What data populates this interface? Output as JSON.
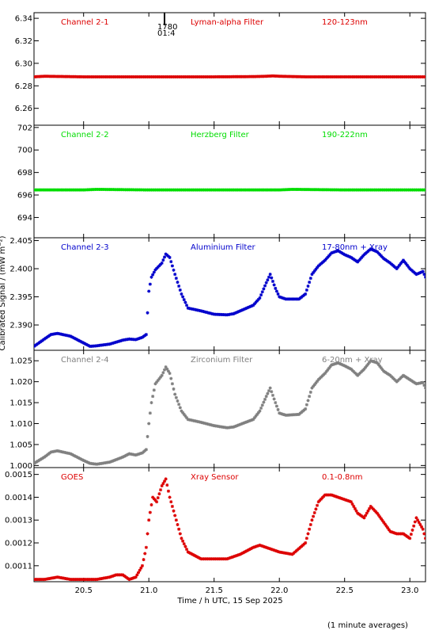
{
  "ylabel_common": "Calibrated Signal / (mW m⁻²)",
  "xlabel": "Time / h UTC, 15 Sep 2025",
  "footnote": "(1 minute averages)",
  "xaxis": {
    "range": [
      20.12,
      23.12
    ],
    "ticks": [
      20.5,
      21.0,
      21.5,
      22.0,
      22.5,
      23.0
    ],
    "tick_labels": [
      "20.5",
      "21.0",
      "21.5",
      "22.0",
      "22.5",
      "23.0"
    ]
  },
  "marker": {
    "labels": [
      "1780",
      "01:4"
    ]
  },
  "chart_data": [
    {
      "type": "scatter",
      "labels": [
        "Channel 2-1",
        "Lyman-alpha Filter",
        "120-123nm"
      ],
      "color": "#dd0000",
      "ylim": [
        6.245,
        6.345
      ],
      "yticks": [
        6.26,
        6.28,
        6.3,
        6.32,
        6.34
      ],
      "ytick_labels": [
        "6.26",
        "6.28",
        "6.30",
        "6.32",
        "6.34"
      ],
      "series": [
        {
          "x": [
            20.12,
            20.2,
            20.5,
            21.0,
            21.5,
            21.8,
            21.9,
            21.95,
            22.0,
            22.2,
            22.5,
            23.0,
            23.12
          ],
          "y": [
            6.288,
            6.2885,
            6.288,
            6.288,
            6.288,
            6.2882,
            6.2885,
            6.2888,
            6.2885,
            6.288,
            6.288,
            6.288,
            6.288
          ]
        }
      ]
    },
    {
      "type": "scatter",
      "labels": [
        "Channel 2-2",
        "Herzberg Filter",
        "190-222nm"
      ],
      "color": "#00dd00",
      "ylim": [
        692.2,
        702.2
      ],
      "yticks": [
        694,
        696,
        698,
        700,
        702
      ],
      "ytick_labels": [
        "694",
        "696",
        "698",
        "700",
        "702"
      ],
      "series": [
        {
          "x": [
            20.12,
            20.5,
            20.6,
            21.0,
            21.5,
            22.0,
            22.1,
            22.5,
            23.0,
            23.12
          ],
          "y": [
            696.45,
            696.45,
            696.5,
            696.45,
            696.45,
            696.45,
            696.5,
            696.45,
            696.45,
            696.45
          ]
        }
      ]
    },
    {
      "type": "scatter",
      "labels": [
        "Channel 2-3",
        "Aluminium Filter",
        "17-80nm + Xray"
      ],
      "color": "#0000cc",
      "ylim": [
        2.3855,
        2.4055
      ],
      "yticks": [
        2.39,
        2.395,
        2.4,
        2.405
      ],
      "ytick_labels": [
        "2.390",
        "2.395",
        "2.400",
        "2.405"
      ],
      "series": [
        {
          "x": [
            20.12,
            20.2,
            20.25,
            20.3,
            20.4,
            20.5,
            20.55,
            20.6,
            20.7,
            20.8,
            20.85,
            20.9,
            20.95,
            20.98,
            21.0,
            21.02,
            21.05,
            21.1,
            21.13,
            21.16,
            21.2,
            21.25,
            21.3,
            21.4,
            21.5,
            21.6,
            21.65,
            21.7,
            21.8,
            21.85,
            21.9,
            21.93,
            21.97,
            22.0,
            22.05,
            22.15,
            22.2,
            22.25,
            22.3,
            22.35,
            22.4,
            22.45,
            22.5,
            22.55,
            22.6,
            22.65,
            22.7,
            22.75,
            22.8,
            22.85,
            22.9,
            22.95,
            23.0,
            23.05,
            23.1,
            23.12
          ],
          "y": [
            2.3862,
            2.3875,
            2.3883,
            2.3885,
            2.388,
            2.3868,
            2.3862,
            2.3863,
            2.3866,
            2.3873,
            2.3875,
            2.3874,
            2.3878,
            2.3883,
            2.396,
            2.3985,
            2.3998,
            2.401,
            2.4026,
            2.402,
            2.399,
            2.3955,
            2.393,
            2.3925,
            2.3919,
            2.3918,
            2.392,
            2.3925,
            2.3935,
            2.3948,
            2.3975,
            2.399,
            2.3965,
            2.395,
            2.3946,
            2.3946,
            2.3955,
            2.399,
            2.4005,
            2.4015,
            2.4028,
            2.4032,
            2.4025,
            2.402,
            2.4012,
            2.4025,
            2.4035,
            2.403,
            2.4018,
            2.401,
            2.4,
            2.4015,
            2.4,
            2.399,
            2.3995,
            2.3985
          ]
        }
      ]
    },
    {
      "type": "scatter",
      "labels": [
        "Channel 2-4",
        "Zirconium Filter",
        "6-20nm + Xray"
      ],
      "color": "#808080",
      "ylim": [
        0.9995,
        1.0275
      ],
      "yticks": [
        1.0,
        1.005,
        1.01,
        1.015,
        1.02,
        1.025
      ],
      "ytick_labels": [
        "1.000",
        "1.005",
        "1.010",
        "1.015",
        "1.020",
        "1.025"
      ],
      "series": [
        {
          "x": [
            20.12,
            20.2,
            20.25,
            20.3,
            20.4,
            20.5,
            20.55,
            20.6,
            20.7,
            20.8,
            20.85,
            20.9,
            20.95,
            20.98,
            21.0,
            21.02,
            21.05,
            21.1,
            21.13,
            21.16,
            21.2,
            21.25,
            21.3,
            21.4,
            21.5,
            21.6,
            21.65,
            21.7,
            21.8,
            21.85,
            21.9,
            21.93,
            21.97,
            22.0,
            22.05,
            22.15,
            22.2,
            22.25,
            22.3,
            22.35,
            22.4,
            22.45,
            22.5,
            22.55,
            22.6,
            22.65,
            22.7,
            22.75,
            22.8,
            22.85,
            22.9,
            22.95,
            23.0,
            23.05,
            23.1,
            23.12
          ],
          "y": [
            1.0005,
            1.002,
            1.0032,
            1.0035,
            1.0028,
            1.0012,
            1.0005,
            1.0003,
            1.0008,
            1.002,
            1.0028,
            1.0025,
            1.003,
            1.0038,
            1.01,
            1.015,
            1.0195,
            1.0215,
            1.0235,
            1.022,
            1.017,
            1.013,
            1.011,
            1.0103,
            1.0095,
            1.009,
            1.0092,
            1.0098,
            1.011,
            1.013,
            1.0165,
            1.0185,
            1.015,
            1.0125,
            1.012,
            1.0122,
            1.0135,
            1.0185,
            1.0205,
            1.022,
            1.024,
            1.0245,
            1.0238,
            1.023,
            1.0215,
            1.023,
            1.025,
            1.0245,
            1.0225,
            1.0215,
            1.02,
            1.0215,
            1.0205,
            1.0195,
            1.0198,
            1.0185
          ]
        }
      ]
    },
    {
      "type": "scatter",
      "labels": [
        "GOES",
        "Xray Sensor",
        "0.1-0.8nm"
      ],
      "color": "#dd0000",
      "ylim": [
        0.00103,
        0.00153
      ],
      "yticks": [
        0.0011,
        0.0012,
        0.0013,
        0.0014,
        0.0015
      ],
      "ytick_labels": [
        "0.0011",
        "0.0012",
        "0.0013",
        "0.0014",
        "0.0015"
      ],
      "series": [
        {
          "x": [
            20.12,
            20.2,
            20.3,
            20.4,
            20.5,
            20.6,
            20.7,
            20.75,
            20.8,
            20.85,
            20.9,
            20.95,
            20.98,
            21.0,
            21.03,
            21.06,
            21.1,
            21.13,
            21.16,
            21.2,
            21.25,
            21.3,
            21.4,
            21.5,
            21.6,
            21.7,
            21.8,
            21.85,
            21.9,
            21.95,
            22.0,
            22.1,
            22.2,
            22.25,
            22.3,
            22.35,
            22.4,
            22.5,
            22.55,
            22.6,
            22.65,
            22.7,
            22.75,
            22.8,
            22.85,
            22.9,
            22.95,
            23.0,
            23.05,
            23.1,
            23.12
          ],
          "y": [
            0.00104,
            0.00104,
            0.00105,
            0.00104,
            0.00104,
            0.00104,
            0.00105,
            0.00106,
            0.00106,
            0.00104,
            0.00105,
            0.0011,
            0.00118,
            0.0013,
            0.0014,
            0.00138,
            0.00145,
            0.00148,
            0.0014,
            0.00132,
            0.00122,
            0.00116,
            0.00113,
            0.00113,
            0.00113,
            0.00115,
            0.00118,
            0.00119,
            0.00118,
            0.00117,
            0.00116,
            0.00115,
            0.0012,
            0.0013,
            0.00138,
            0.00141,
            0.00141,
            0.00139,
            0.00138,
            0.00133,
            0.00131,
            0.00136,
            0.00133,
            0.00129,
            0.00125,
            0.00124,
            0.00124,
            0.00122,
            0.00131,
            0.00126,
            0.00122
          ]
        }
      ]
    }
  ]
}
